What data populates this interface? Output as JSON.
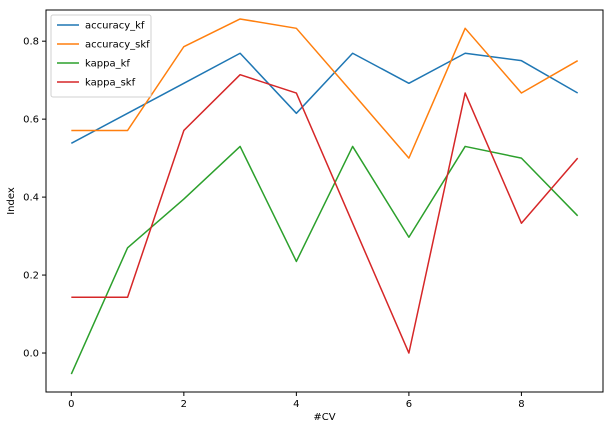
{
  "chart_data": {
    "type": "line",
    "title": "",
    "xlabel": "#CV",
    "ylabel": "Index",
    "x": [
      0,
      1,
      2,
      3,
      4,
      5,
      6,
      7,
      8,
      9
    ],
    "xlim": [
      -0.45,
      9.45
    ],
    "ylim": [
      -0.1,
      0.88
    ],
    "xticks": [
      0,
      2,
      4,
      6,
      8
    ],
    "yticks": [
      0.0,
      0.2,
      0.4,
      0.6,
      0.8
    ],
    "grid": false,
    "legend_position": "top-left",
    "series": [
      {
        "name": "accuracy_kf",
        "color": "#1f77b4",
        "values": [
          0.538,
          0.615,
          0.692,
          0.769,
          0.615,
          0.769,
          0.692,
          0.769,
          0.75,
          0.667
        ]
      },
      {
        "name": "accuracy_skf",
        "color": "#ff7f0e",
        "values": [
          0.571,
          0.571,
          0.786,
          0.857,
          0.833,
          0.667,
          0.5,
          0.833,
          0.667,
          0.75
        ]
      },
      {
        "name": "kappa_kf",
        "color": "#2ca02c",
        "values": [
          -0.054,
          0.27,
          0.395,
          0.53,
          0.235,
          0.53,
          0.297,
          0.53,
          0.5,
          0.352
        ]
      },
      {
        "name": "kappa_skf",
        "color": "#d62728",
        "values": [
          0.143,
          0.143,
          0.571,
          0.714,
          0.667,
          0.333,
          0.0,
          0.667,
          0.333,
          0.5
        ]
      }
    ]
  }
}
